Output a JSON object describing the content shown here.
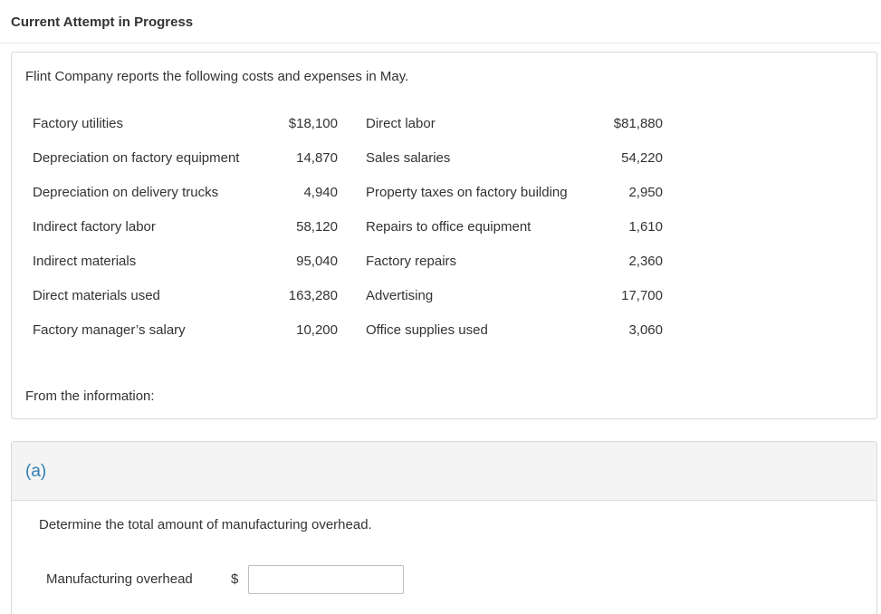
{
  "header": {
    "title": "Current Attempt in Progress"
  },
  "problem": {
    "intro": "Flint Company reports the following costs and expenses in May.",
    "rows": [
      {
        "left_label": "Factory utilities",
        "left_amount": "$18,100",
        "right_label": "Direct labor",
        "right_amount": "$81,880"
      },
      {
        "left_label": "Depreciation on factory equipment",
        "left_amount": "14,870",
        "right_label": "Sales salaries",
        "right_amount": "54,220"
      },
      {
        "left_label": "Depreciation on delivery trucks",
        "left_amount": "4,940",
        "right_label": "Property taxes on factory building",
        "right_amount": "2,950"
      },
      {
        "left_label": "Indirect factory labor",
        "left_amount": "58,120",
        "right_label": "Repairs to office equipment",
        "right_amount": "1,610"
      },
      {
        "left_label": "Indirect materials",
        "left_amount": "95,040",
        "right_label": "Factory repairs",
        "right_amount": "2,360"
      },
      {
        "left_label": "Direct materials used",
        "left_amount": "163,280",
        "right_label": "Advertising",
        "right_amount": "17,700"
      },
      {
        "left_label": "Factory manager’s salary",
        "left_amount": "10,200",
        "right_label": "Office supplies used",
        "right_amount": "3,060"
      }
    ],
    "footer": "From the information:"
  },
  "part_a": {
    "label": "(a)",
    "question": "Determine the total amount of manufacturing overhead.",
    "answer_label": "Manufacturing overhead",
    "currency": "$",
    "answer_value": ""
  }
}
